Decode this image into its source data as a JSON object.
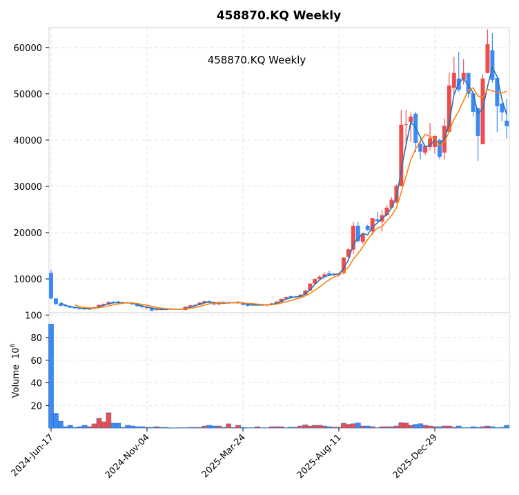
{
  "chart_data": {
    "type": "candlestick",
    "title": "458870.KQ  Weekly",
    "inner_label": "458870.KQ  Weekly",
    "ylabel_volume": "Volume",
    "ylabel_volume_exp": "10",
    "ylabel_volume_pow": "6",
    "price_ylim": [
      2700,
      64300
    ],
    "price_yticks": [
      10000,
      20000,
      30000,
      40000,
      50000,
      60000
    ],
    "volume_ylim": [
      0,
      102
    ],
    "volume_yticks": [
      20,
      40,
      60,
      80,
      100
    ],
    "x_ticks": [
      {
        "index": 0,
        "label": "2024-Jun-17"
      },
      {
        "index": 20,
        "label": "2024-Nov-04"
      },
      {
        "index": 40,
        "label": "2025-Mar-24"
      },
      {
        "index": 60,
        "label": "2025-Aug-11"
      },
      {
        "index": 80,
        "label": "2025-Dec-29"
      }
    ],
    "moving_averages": [
      3,
      6
    ],
    "colors": {
      "up": "#ef4d4d",
      "down": "#3d8af7",
      "ma1": "#1f77b4",
      "ma2": "#ff7f0e",
      "grid": "#e3e3e3"
    },
    "ohlc": [
      [
        11300,
        12000,
        5500,
        5800
      ],
      [
        5800,
        5800,
        4400,
        4600
      ],
      [
        4700,
        4900,
        4100,
        4200
      ],
      [
        4300,
        4600,
        4000,
        4100
      ],
      [
        4100,
        4300,
        3700,
        3800
      ],
      [
        3800,
        3900,
        3600,
        3700
      ],
      [
        3700,
        3800,
        3400,
        3600
      ],
      [
        3600,
        3700,
        3300,
        3500
      ],
      [
        3400,
        3800,
        3300,
        3700
      ],
      [
        3700,
        4000,
        3600,
        3900
      ],
      [
        3900,
        4500,
        3800,
        4400
      ],
      [
        4300,
        4700,
        4200,
        4600
      ],
      [
        4500,
        5200,
        4400,
        5000
      ],
      [
        5000,
        5200,
        4700,
        4900
      ],
      [
        5100,
        5300,
        4700,
        4800
      ],
      [
        4700,
        5100,
        4600,
        4900
      ],
      [
        4900,
        5100,
        4700,
        4800
      ],
      [
        4800,
        5000,
        4400,
        4500
      ],
      [
        4500,
        4600,
        4000,
        4100
      ],
      [
        4200,
        4300,
        3800,
        3900
      ],
      [
        3700,
        4000,
        3600,
        3900
      ],
      [
        3800,
        3900,
        3000,
        3200
      ],
      [
        3300,
        3600,
        3100,
        3500
      ],
      [
        3300,
        3700,
        3200,
        3600
      ],
      [
        3500,
        3700,
        3200,
        3300
      ],
      [
        3400,
        3700,
        3300,
        3600
      ],
      [
        3500,
        3600,
        3300,
        3400
      ],
      [
        3500,
        3600,
        3300,
        3400
      ],
      [
        3300,
        4100,
        3200,
        4000
      ],
      [
        4000,
        4400,
        3900,
        4300
      ],
      [
        4300,
        4500,
        4100,
        4400
      ],
      [
        4400,
        5000,
        4300,
        4900
      ],
      [
        4800,
        5300,
        4700,
        5200
      ],
      [
        5200,
        5400,
        4800,
        4900
      ],
      [
        5000,
        5100,
        4300,
        4500
      ],
      [
        4500,
        5100,
        4400,
        5000
      ],
      [
        5000,
        5200,
        4600,
        4700
      ],
      [
        4700,
        5100,
        4600,
        5000
      ],
      [
        4900,
        5000,
        4800,
        4900
      ],
      [
        4800,
        5200,
        4700,
        5000
      ],
      [
        4800,
        4900,
        4300,
        4400
      ],
      [
        4500,
        4600,
        4100,
        4200
      ],
      [
        4300,
        4600,
        4100,
        4500
      ],
      [
        4400,
        4600,
        4300,
        4400
      ],
      [
        4400,
        4500,
        4200,
        4400
      ],
      [
        4400,
        4500,
        4100,
        4400
      ],
      [
        4400,
        4800,
        4300,
        4700
      ],
      [
        4700,
        5200,
        4600,
        5100
      ],
      [
        5000,
        5800,
        4900,
        5700
      ],
      [
        5700,
        6200,
        5600,
        6100
      ],
      [
        6300,
        6400,
        5900,
        6000
      ],
      [
        6000,
        6300,
        5900,
        6200
      ],
      [
        6200,
        6700,
        6100,
        6600
      ],
      [
        6600,
        7600,
        6500,
        7500
      ],
      [
        7500,
        9100,
        7400,
        9000
      ],
      [
        9000,
        10100,
        8900,
        10000
      ],
      [
        10000,
        10900,
        9900,
        10500
      ],
      [
        10500,
        11400,
        10300,
        11000
      ],
      [
        11200,
        11800,
        10800,
        10900
      ],
      [
        10900,
        11300,
        10600,
        11100
      ],
      [
        11000,
        11300,
        10500,
        11200
      ],
      [
        11300,
        14800,
        11000,
        14600
      ],
      [
        14800,
        16600,
        14600,
        16400
      ],
      [
        16300,
        22300,
        15300,
        21500
      ],
      [
        21500,
        22300,
        17800,
        18200
      ],
      [
        18000,
        20000,
        17600,
        19800
      ],
      [
        21500,
        21700,
        20400,
        20600
      ],
      [
        20300,
        23100,
        19500,
        23100
      ],
      [
        22900,
        24500,
        22300,
        22500
      ],
      [
        22400,
        24900,
        20200,
        23800
      ],
      [
        23800,
        25900,
        23500,
        25400
      ],
      [
        25400,
        27700,
        25200,
        27100
      ],
      [
        26600,
        30400,
        26300,
        30100
      ],
      [
        30100,
        46500,
        30000,
        43300
      ],
      [
        43300,
        46500,
        39000,
        43400
      ],
      [
        43900,
        46000,
        39600,
        45100
      ],
      [
        45700,
        46100,
        37400,
        39400
      ],
      [
        39200,
        40300,
        35800,
        37500
      ],
      [
        37300,
        38800,
        36700,
        38800
      ],
      [
        38500,
        43700,
        37800,
        40400
      ],
      [
        38500,
        41000,
        37100,
        40900
      ],
      [
        40000,
        40400,
        35800,
        36400
      ],
      [
        37300,
        44700,
        35800,
        43100
      ],
      [
        41800,
        54600,
        41600,
        51800
      ],
      [
        51300,
        58000,
        50000,
        54500
      ],
      [
        53300,
        59100,
        50400,
        50900
      ],
      [
        53100,
        57500,
        52000,
        54500
      ],
      [
        54500,
        54500,
        49100,
        50000
      ],
      [
        50100,
        50500,
        45100,
        46100
      ],
      [
        46900,
        47000,
        35500,
        40900
      ],
      [
        39100,
        54200,
        39100,
        53300
      ],
      [
        54500,
        63900,
        54400,
        60700
      ],
      [
        59400,
        63100,
        52400,
        53000
      ],
      [
        53400,
        53400,
        41700,
        47300
      ],
      [
        47900,
        48000,
        44100,
        46000
      ],
      [
        44200,
        48900,
        40300,
        43000
      ]
    ],
    "volume": [
      92,
      13,
      6,
      1.2,
      2.4,
      0.6,
      1.2,
      2.4,
      1.2,
      3.7,
      8.6,
      5.5,
      13.5,
      4.3,
      4.3,
      0.6,
      2.4,
      1.8,
      1.2,
      1.2,
      0.6,
      0.6,
      1.2,
      0.6,
      0.6,
      0.2,
      0.2,
      0.3,
      0.3,
      0.6,
      0.6,
      0.6,
      1.8,
      2.4,
      1.8,
      1.8,
      0.6,
      3.7,
      0.6,
      2.4,
      0.6,
      0.3,
      0.3,
      1.2,
      0.3,
      0.3,
      1.2,
      1.2,
      1.2,
      0.3,
      0.8,
      0.8,
      1.8,
      2.8,
      1.8,
      2.4,
      2.4,
      1.8,
      1.2,
      0.8,
      0.8,
      4.2,
      3.2,
      3.8,
      4.5,
      1.8,
      1.8,
      1.2,
      0.3,
      1.2,
      1.2,
      1.2,
      1.8,
      4.8,
      4.5,
      2.4,
      3.2,
      3.8,
      2.4,
      1.8,
      1.2,
      1.2,
      1.8,
      1.8,
      0.8,
      1.8,
      0.3,
      0.3,
      1.2,
      0.6,
      1.2,
      1.8,
      1.2,
      0.3,
      0.6,
      2.4
    ]
  }
}
